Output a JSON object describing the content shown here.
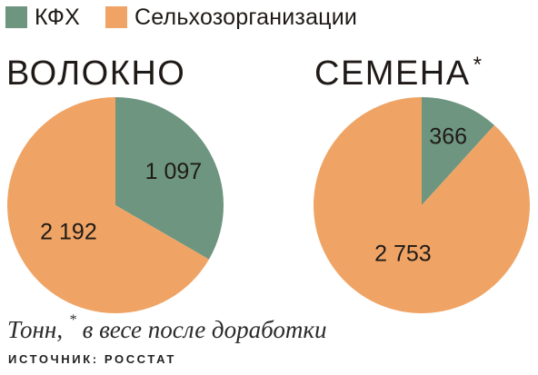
{
  "colors": {
    "kfh": "#6e9580",
    "agro": "#efa465"
  },
  "legend": [
    {
      "label": "КФХ",
      "color": "#6e9580"
    },
    {
      "label": "Сельхозорганизации",
      "color": "#efa465"
    }
  ],
  "charts": [
    {
      "title": "ВОЛОКНО",
      "title_mark": ""
    },
    {
      "title": "СЕМЕНА",
      "title_mark": "*"
    }
  ],
  "note": {
    "before": "Тонн, ",
    "mark": "*",
    "after": " в весе после доработки"
  },
  "source": "ИСТОЧНИК: РОССТАТ",
  "chart_data": [
    {
      "type": "pie",
      "title": "ВОЛОКНО",
      "categories": [
        "КФХ",
        "Сельхозорганизации"
      ],
      "values": [
        1097,
        2192
      ],
      "value_labels": [
        "1 097",
        "2 192"
      ],
      "colors": [
        "#6e9580",
        "#efa465"
      ],
      "legend_position": "top-left"
    },
    {
      "type": "pie",
      "title": "СЕМЕНА*",
      "categories": [
        "КФХ",
        "Сельхозорганизации"
      ],
      "values": [
        366,
        2753
      ],
      "value_labels": [
        "366",
        "2 753"
      ],
      "colors": [
        "#6e9580",
        "#efa465"
      ],
      "legend_position": "top-left"
    }
  ]
}
